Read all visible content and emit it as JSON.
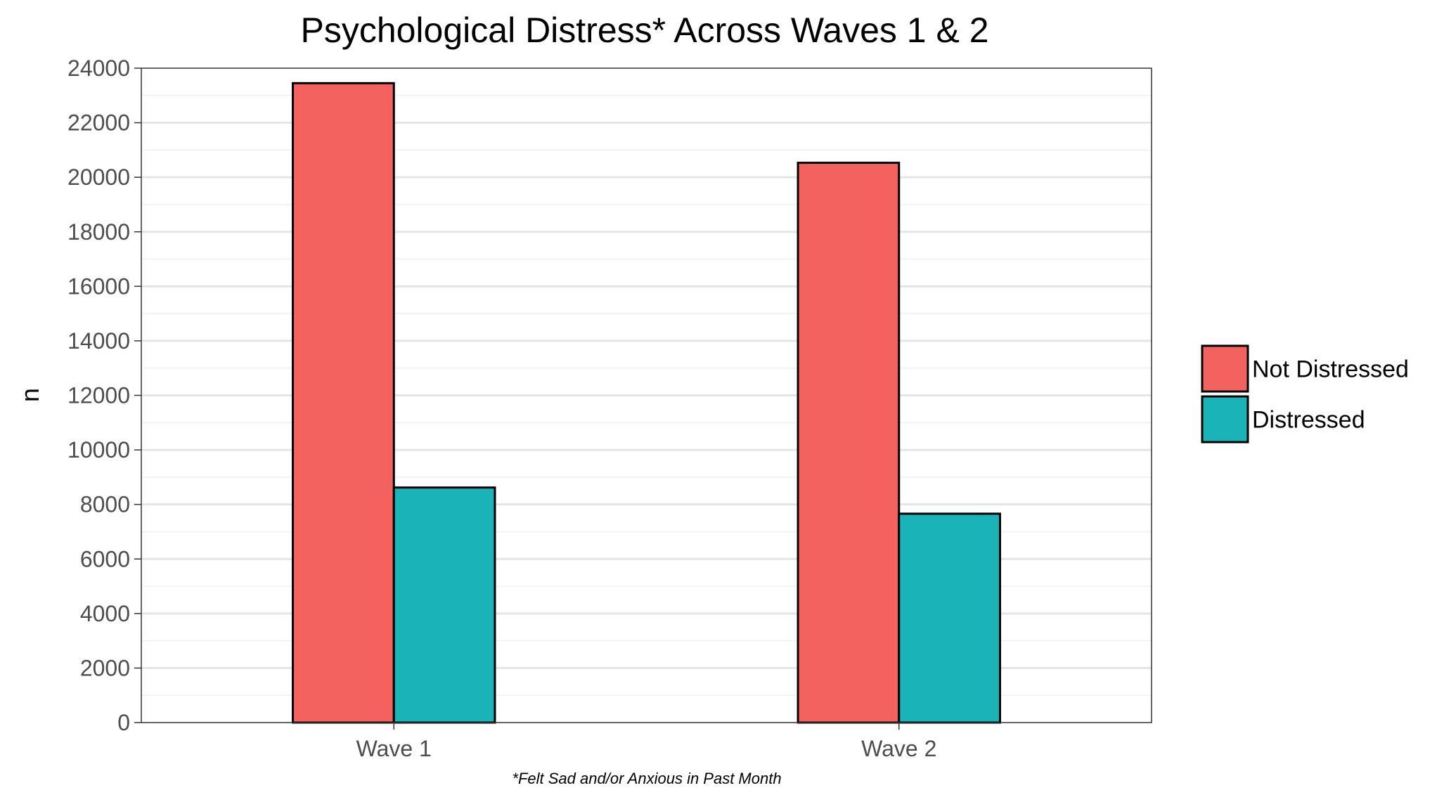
{
  "chart_data": {
    "type": "bar",
    "title": "Psychological Distress* Across Waves 1 & 2",
    "caption": "*Felt Sad and/or Anxious in Past Month",
    "xlabel": "",
    "ylabel": "n",
    "categories": [
      "Wave 1",
      "Wave 2"
    ],
    "series": [
      {
        "name": "Not Distressed",
        "color": "#F46260",
        "values": [
          23450,
          20530
        ]
      },
      {
        "name": "Distressed",
        "color": "#1AB3B7",
        "values": [
          8620,
          7660
        ]
      }
    ],
    "ylim": [
      0,
      24000
    ],
    "yticks": [
      0,
      2000,
      4000,
      6000,
      8000,
      10000,
      12000,
      14000,
      16000,
      18000,
      20000,
      22000,
      24000
    ],
    "grid": true,
    "legend_position": "right"
  }
}
